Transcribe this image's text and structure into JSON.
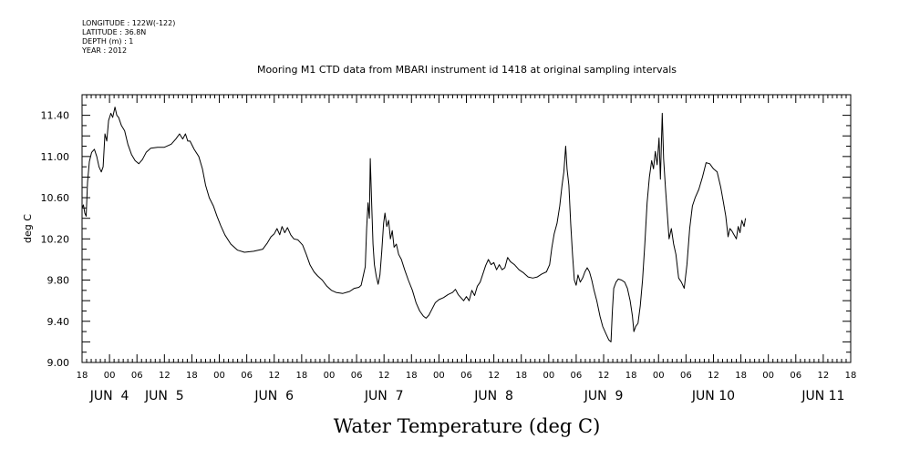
{
  "header": {
    "longitude": "LONGITUDE : 122W(-122)",
    "latitude": "LATITUDE : 36.8N",
    "depth": "DEPTH (m) : 1",
    "year": "YEAR : 2012"
  },
  "chart_data": {
    "type": "line",
    "title": "Mooring M1 CTD data from MBARI instrument id 1418 at original sampling intervals",
    "xlabel": "Water Temperature (deg C)",
    "ylabel": "deg C",
    "ylim": [
      9.0,
      11.6
    ],
    "yticks": [
      "9.00",
      "9.40",
      "9.80",
      "10.20",
      "10.60",
      "11.00",
      "11.40"
    ],
    "x_range_hours": [
      0,
      168
    ],
    "hour_tick_labels": [
      "18",
      "00",
      "06",
      "12",
      "18",
      "00",
      "06",
      "12",
      "18",
      "00",
      "06",
      "12",
      "18",
      "00",
      "06",
      "12",
      "18",
      "00",
      "06",
      "12",
      "18",
      "00",
      "06",
      "12",
      "18",
      "00",
      "06",
      "12",
      "18"
    ],
    "day_labels": [
      {
        "label": "JUN  4",
        "hour": 6
      },
      {
        "label": "JUN  5",
        "hour": 18
      },
      {
        "label": "JUN  6",
        "hour": 42
      },
      {
        "label": "JUN  7",
        "hour": 66
      },
      {
        "label": "JUN  8",
        "hour": 90
      },
      {
        "label": "JUN  9",
        "hour": 114
      },
      {
        "label": "JUN 10",
        "hour": 138
      },
      {
        "label": "JUN 11",
        "hour": 162
      }
    ],
    "series": [
      {
        "color": "#000000",
        "points": [
          [
            0,
            10.5
          ],
          [
            0.3,
            10.53
          ],
          [
            0.6,
            10.45
          ],
          [
            0.9,
            10.42
          ],
          [
            1.2,
            10.75
          ],
          [
            1.6,
            10.95
          ],
          [
            2.1,
            11.04
          ],
          [
            2.7,
            11.07
          ],
          [
            3.2,
            11.0
          ],
          [
            3.7,
            10.9
          ],
          [
            4.2,
            10.85
          ],
          [
            4.6,
            10.9
          ],
          [
            5.0,
            11.22
          ],
          [
            5.4,
            11.15
          ],
          [
            5.8,
            11.35
          ],
          [
            6.3,
            11.42
          ],
          [
            6.7,
            11.38
          ],
          [
            7.2,
            11.48
          ],
          [
            7.6,
            11.4
          ],
          [
            8.0,
            11.38
          ],
          [
            8.6,
            11.3
          ],
          [
            9.3,
            11.25
          ],
          [
            10.0,
            11.12
          ],
          [
            10.8,
            11.02
          ],
          [
            11.6,
            10.96
          ],
          [
            12.4,
            10.93
          ],
          [
            13.2,
            10.97
          ],
          [
            14.0,
            11.04
          ],
          [
            15.0,
            11.08
          ],
          [
            16.5,
            11.09
          ],
          [
            18.0,
            11.09
          ],
          [
            19.5,
            11.12
          ],
          [
            20.5,
            11.17
          ],
          [
            21.3,
            11.22
          ],
          [
            22.0,
            11.17
          ],
          [
            22.6,
            11.22
          ],
          [
            23.1,
            11.15
          ],
          [
            23.6,
            11.15
          ],
          [
            24.5,
            11.07
          ],
          [
            25.5,
            11.0
          ],
          [
            26.3,
            10.88
          ],
          [
            27.0,
            10.72
          ],
          [
            27.8,
            10.6
          ],
          [
            28.7,
            10.52
          ],
          [
            29.5,
            10.42
          ],
          [
            30.3,
            10.33
          ],
          [
            31.2,
            10.24
          ],
          [
            32.5,
            10.15
          ],
          [
            34.0,
            10.09
          ],
          [
            35.5,
            10.07
          ],
          [
            37.5,
            10.08
          ],
          [
            39.5,
            10.1
          ],
          [
            40.5,
            10.16
          ],
          [
            41.3,
            10.22
          ],
          [
            42.0,
            10.25
          ],
          [
            42.6,
            10.3
          ],
          [
            43.2,
            10.24
          ],
          [
            43.7,
            10.32
          ],
          [
            44.3,
            10.26
          ],
          [
            44.9,
            10.31
          ],
          [
            45.6,
            10.24
          ],
          [
            46.3,
            10.2
          ],
          [
            47.2,
            10.19
          ],
          [
            48.2,
            10.14
          ],
          [
            49.0,
            10.05
          ],
          [
            49.8,
            9.95
          ],
          [
            50.7,
            9.88
          ],
          [
            51.5,
            9.84
          ],
          [
            52.5,
            9.8
          ],
          [
            53.5,
            9.74
          ],
          [
            54.5,
            9.7
          ],
          [
            55.5,
            9.68
          ],
          [
            57.0,
            9.67
          ],
          [
            58.5,
            9.69
          ],
          [
            59.5,
            9.72
          ],
          [
            60.5,
            9.73
          ],
          [
            61.0,
            9.75
          ],
          [
            61.5,
            9.85
          ],
          [
            61.9,
            9.93
          ],
          [
            62.2,
            10.3
          ],
          [
            62.5,
            10.55
          ],
          [
            62.8,
            10.4
          ],
          [
            63.0,
            10.98
          ],
          [
            63.3,
            10.55
          ],
          [
            63.6,
            10.15
          ],
          [
            63.9,
            9.95
          ],
          [
            64.3,
            9.84
          ],
          [
            64.7,
            9.76
          ],
          [
            65.1,
            9.85
          ],
          [
            65.5,
            10.08
          ],
          [
            65.9,
            10.35
          ],
          [
            66.2,
            10.45
          ],
          [
            66.6,
            10.32
          ],
          [
            67.0,
            10.38
          ],
          [
            67.4,
            10.2
          ],
          [
            67.8,
            10.28
          ],
          [
            68.2,
            10.12
          ],
          [
            68.7,
            10.15
          ],
          [
            69.2,
            10.05
          ],
          [
            69.8,
            10.0
          ],
          [
            70.5,
            9.9
          ],
          [
            71.3,
            9.8
          ],
          [
            72.2,
            9.7
          ],
          [
            73.0,
            9.58
          ],
          [
            73.8,
            9.5
          ],
          [
            74.6,
            9.45
          ],
          [
            75.2,
            9.43
          ],
          [
            75.8,
            9.46
          ],
          [
            76.5,
            9.52
          ],
          [
            77.2,
            9.58
          ],
          [
            78.0,
            9.61
          ],
          [
            79.0,
            9.63
          ],
          [
            80.0,
            9.66
          ],
          [
            81.0,
            9.68
          ],
          [
            81.6,
            9.71
          ],
          [
            82.2,
            9.66
          ],
          [
            82.8,
            9.63
          ],
          [
            83.4,
            9.6
          ],
          [
            84.0,
            9.64
          ],
          [
            84.6,
            9.6
          ],
          [
            85.2,
            9.7
          ],
          [
            85.8,
            9.65
          ],
          [
            86.4,
            9.74
          ],
          [
            87.0,
            9.78
          ],
          [
            87.6,
            9.86
          ],
          [
            88.2,
            9.94
          ],
          [
            88.8,
            10.0
          ],
          [
            89.4,
            9.95
          ],
          [
            90.0,
            9.97
          ],
          [
            90.6,
            9.9
          ],
          [
            91.2,
            9.95
          ],
          [
            91.8,
            9.9
          ],
          [
            92.4,
            9.92
          ],
          [
            93.0,
            10.02
          ],
          [
            93.6,
            9.98
          ],
          [
            94.5,
            9.95
          ],
          [
            95.5,
            9.9
          ],
          [
            96.5,
            9.87
          ],
          [
            97.5,
            9.83
          ],
          [
            98.5,
            9.82
          ],
          [
            99.5,
            9.83
          ],
          [
            100.5,
            9.86
          ],
          [
            101.5,
            9.88
          ],
          [
            102.2,
            9.95
          ],
          [
            102.7,
            10.12
          ],
          [
            103.2,
            10.25
          ],
          [
            103.8,
            10.35
          ],
          [
            104.4,
            10.52
          ],
          [
            104.9,
            10.72
          ],
          [
            105.3,
            10.85
          ],
          [
            105.7,
            11.1
          ],
          [
            106.0,
            10.88
          ],
          [
            106.4,
            10.72
          ],
          [
            106.8,
            10.35
          ],
          [
            107.2,
            10.05
          ],
          [
            107.6,
            9.8
          ],
          [
            108.0,
            9.75
          ],
          [
            108.4,
            9.85
          ],
          [
            108.9,
            9.78
          ],
          [
            109.4,
            9.82
          ],
          [
            109.9,
            9.88
          ],
          [
            110.4,
            9.92
          ],
          [
            110.9,
            9.88
          ],
          [
            111.4,
            9.8
          ],
          [
            111.9,
            9.7
          ],
          [
            112.5,
            9.6
          ],
          [
            113.2,
            9.45
          ],
          [
            113.8,
            9.35
          ],
          [
            114.5,
            9.28
          ],
          [
            115.1,
            9.22
          ],
          [
            115.6,
            9.2
          ],
          [
            115.9,
            9.5
          ],
          [
            116.2,
            9.72
          ],
          [
            116.7,
            9.78
          ],
          [
            117.2,
            9.81
          ],
          [
            117.9,
            9.8
          ],
          [
            118.6,
            9.78
          ],
          [
            119.2,
            9.72
          ],
          [
            119.8,
            9.6
          ],
          [
            120.3,
            9.45
          ],
          [
            120.6,
            9.3
          ],
          [
            121.0,
            9.35
          ],
          [
            121.5,
            9.38
          ],
          [
            122.0,
            9.55
          ],
          [
            122.5,
            9.8
          ],
          [
            123.0,
            10.15
          ],
          [
            123.5,
            10.55
          ],
          [
            124.0,
            10.8
          ],
          [
            124.5,
            10.96
          ],
          [
            124.9,
            10.88
          ],
          [
            125.3,
            11.05
          ],
          [
            125.7,
            10.92
          ],
          [
            126.1,
            11.18
          ],
          [
            126.4,
            10.78
          ],
          [
            126.8,
            11.42
          ],
          [
            127.1,
            10.98
          ],
          [
            127.5,
            10.7
          ],
          [
            127.9,
            10.45
          ],
          [
            128.3,
            10.2
          ],
          [
            128.8,
            10.3
          ],
          [
            129.3,
            10.15
          ],
          [
            129.8,
            10.05
          ],
          [
            130.4,
            9.82
          ],
          [
            131.0,
            9.78
          ],
          [
            131.6,
            9.72
          ],
          [
            132.2,
            9.95
          ],
          [
            132.8,
            10.3
          ],
          [
            133.4,
            10.52
          ],
          [
            134.0,
            10.6
          ],
          [
            134.8,
            10.68
          ],
          [
            135.6,
            10.8
          ],
          [
            136.4,
            10.94
          ],
          [
            137.2,
            10.93
          ],
          [
            138.0,
            10.88
          ],
          [
            138.8,
            10.85
          ],
          [
            139.6,
            10.7
          ],
          [
            140.2,
            10.55
          ],
          [
            140.7,
            10.42
          ],
          [
            141.2,
            10.22
          ],
          [
            141.6,
            10.3
          ],
          [
            142.0,
            10.28
          ],
          [
            142.5,
            10.24
          ],
          [
            143.0,
            10.2
          ],
          [
            143.4,
            10.32
          ],
          [
            143.8,
            10.26
          ],
          [
            144.2,
            10.38
          ],
          [
            144.7,
            10.32
          ],
          [
            145.0,
            10.4
          ]
        ]
      }
    ],
    "grid": false
  }
}
